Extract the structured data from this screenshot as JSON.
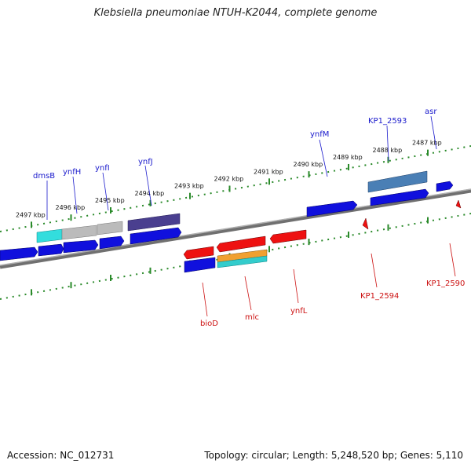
{
  "title": "Klebsiella pneumoniae NTUH-K2044, complete genome",
  "footer": {
    "accession": "Accession: NC_012731",
    "stats": "Topology: circular; Length: 5,248,520 bp; Genes: 5,110"
  },
  "colors": {
    "forward_gene": "#1010dd",
    "reverse_gene": "#ee1111",
    "backbone": "#808080",
    "ticks": "#2a8a2a",
    "cyan_feature": "#33dddd",
    "gray_feature": "#bbbbbb",
    "purple_feature": "#4a3f8f",
    "steelblue_feature": "#4a7fb5",
    "orange_feature": "#f0a030"
  },
  "tick_labels": [
    "2497 kbp",
    "2496 kbp",
    "2495 kbp",
    "2494 kbp",
    "2493 kbp",
    "2492 kbp",
    "2491 kbp",
    "2490 kbp",
    "2489 kbp",
    "2488 kbp",
    "2487 kbp"
  ],
  "top_gene_labels": [
    "dmsB",
    "ynfH",
    "ynfI",
    "ynfJ",
    "ynfM",
    "KP1_2593",
    "asr"
  ],
  "bottom_gene_labels": [
    "bioD",
    "mlc",
    "ynfL",
    "KP1_2594",
    "KP1_2590"
  ]
}
